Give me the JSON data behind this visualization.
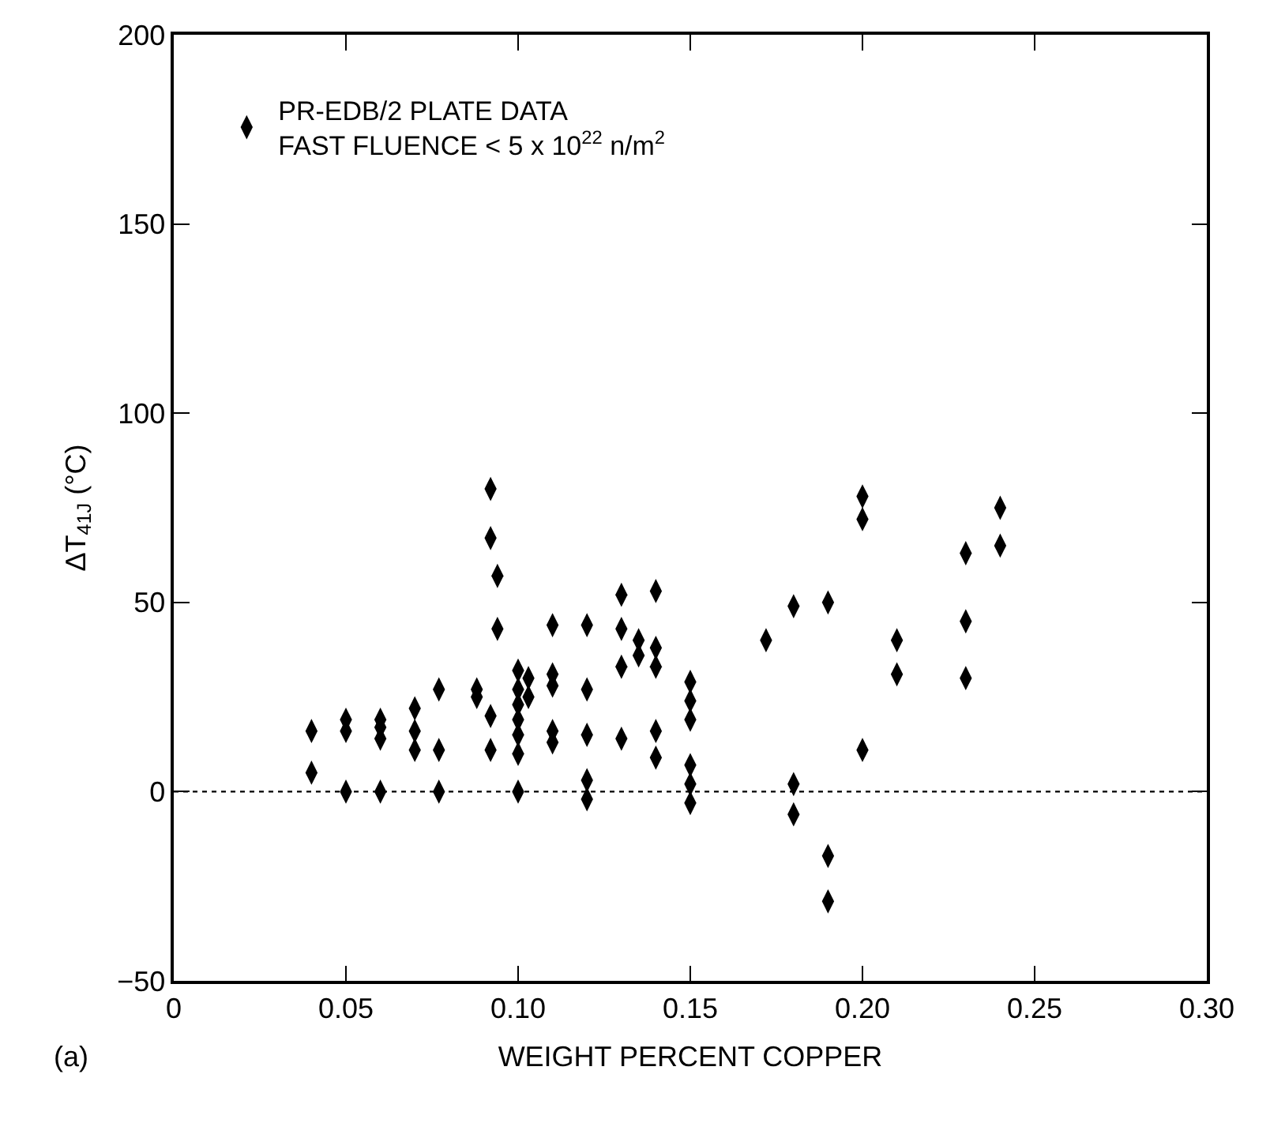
{
  "chart_data": {
    "type": "scatter",
    "xlabel": "WEIGHT PERCENT COPPER",
    "ylabel": "ΔT$_{41J}$ (°C)",
    "xlim": [
      0,
      0.3
    ],
    "xticks": [
      0,
      0.05,
      {
        "value": 0.1,
        "label": "0.10"
      },
      0.15,
      {
        "value": 0.2,
        "label": "0.20"
      },
      0.25,
      {
        "value": 0.3,
        "label": "0.30"
      }
    ],
    "ylim": [
      -50,
      200
    ],
    "yticks": [
      -50,
      0,
      50,
      100,
      150,
      200
    ],
    "marker": "diamond",
    "legend": "top left",
    "grid": false,
    "ref_lines": [
      {
        "axis": "y",
        "value": 0,
        "line_style": "dotted",
        "color": "#000000"
      }
    ],
    "annotations": [
      "(a)"
    ],
    "series": [
      {
        "name": "PR-EDB/2 PLATE DATA\nFAST FLUENCE < 5 x 10$^{22}$ n/m$^{2}$",
        "color": "#000000",
        "x": [
          0.04,
          0.04,
          0.05,
          0.05,
          0.05,
          0.06,
          0.06,
          0.06,
          0.06,
          0.07,
          0.07,
          0.07,
          0.077,
          0.077,
          0.077,
          0.088,
          0.088,
          0.092,
          0.092,
          0.092,
          0.092,
          0.094,
          0.094,
          0.1,
          0.1,
          0.1,
          0.1,
          0.1,
          0.1,
          0.1,
          0.103,
          0.103,
          0.11,
          0.11,
          0.11,
          0.11,
          0.11,
          0.12,
          0.12,
          0.12,
          0.12,
          0.12,
          0.13,
          0.13,
          0.13,
          0.13,
          0.135,
          0.135,
          0.14,
          0.14,
          0.14,
          0.14,
          0.14,
          0.15,
          0.15,
          0.15,
          0.15,
          0.15,
          0.15,
          0.172,
          0.18,
          0.18,
          0.18,
          0.19,
          0.19,
          0.19,
          0.2,
          0.2,
          0.2,
          0.21,
          0.21,
          0.23,
          0.23,
          0.23,
          0.24,
          0.24
        ],
        "values": [
          16,
          5,
          19,
          16,
          0,
          19,
          17,
          14,
          0,
          22,
          16,
          11,
          27,
          11,
          0,
          27,
          25,
          80,
          67,
          20,
          11,
          57,
          43,
          32,
          27,
          23,
          19,
          15,
          10,
          0,
          30,
          25,
          44,
          31,
          28,
          16,
          13,
          44,
          27,
          15,
          3,
          -2,
          52,
          43,
          33,
          14,
          40,
          36,
          53,
          38,
          33,
          16,
          9,
          29,
          24,
          19,
          7,
          2,
          -3,
          40,
          49,
          2,
          -6,
          50,
          -17,
          -29,
          78,
          72,
          11,
          40,
          31,
          63,
          45,
          30,
          75,
          65
        ]
      }
    ]
  }
}
